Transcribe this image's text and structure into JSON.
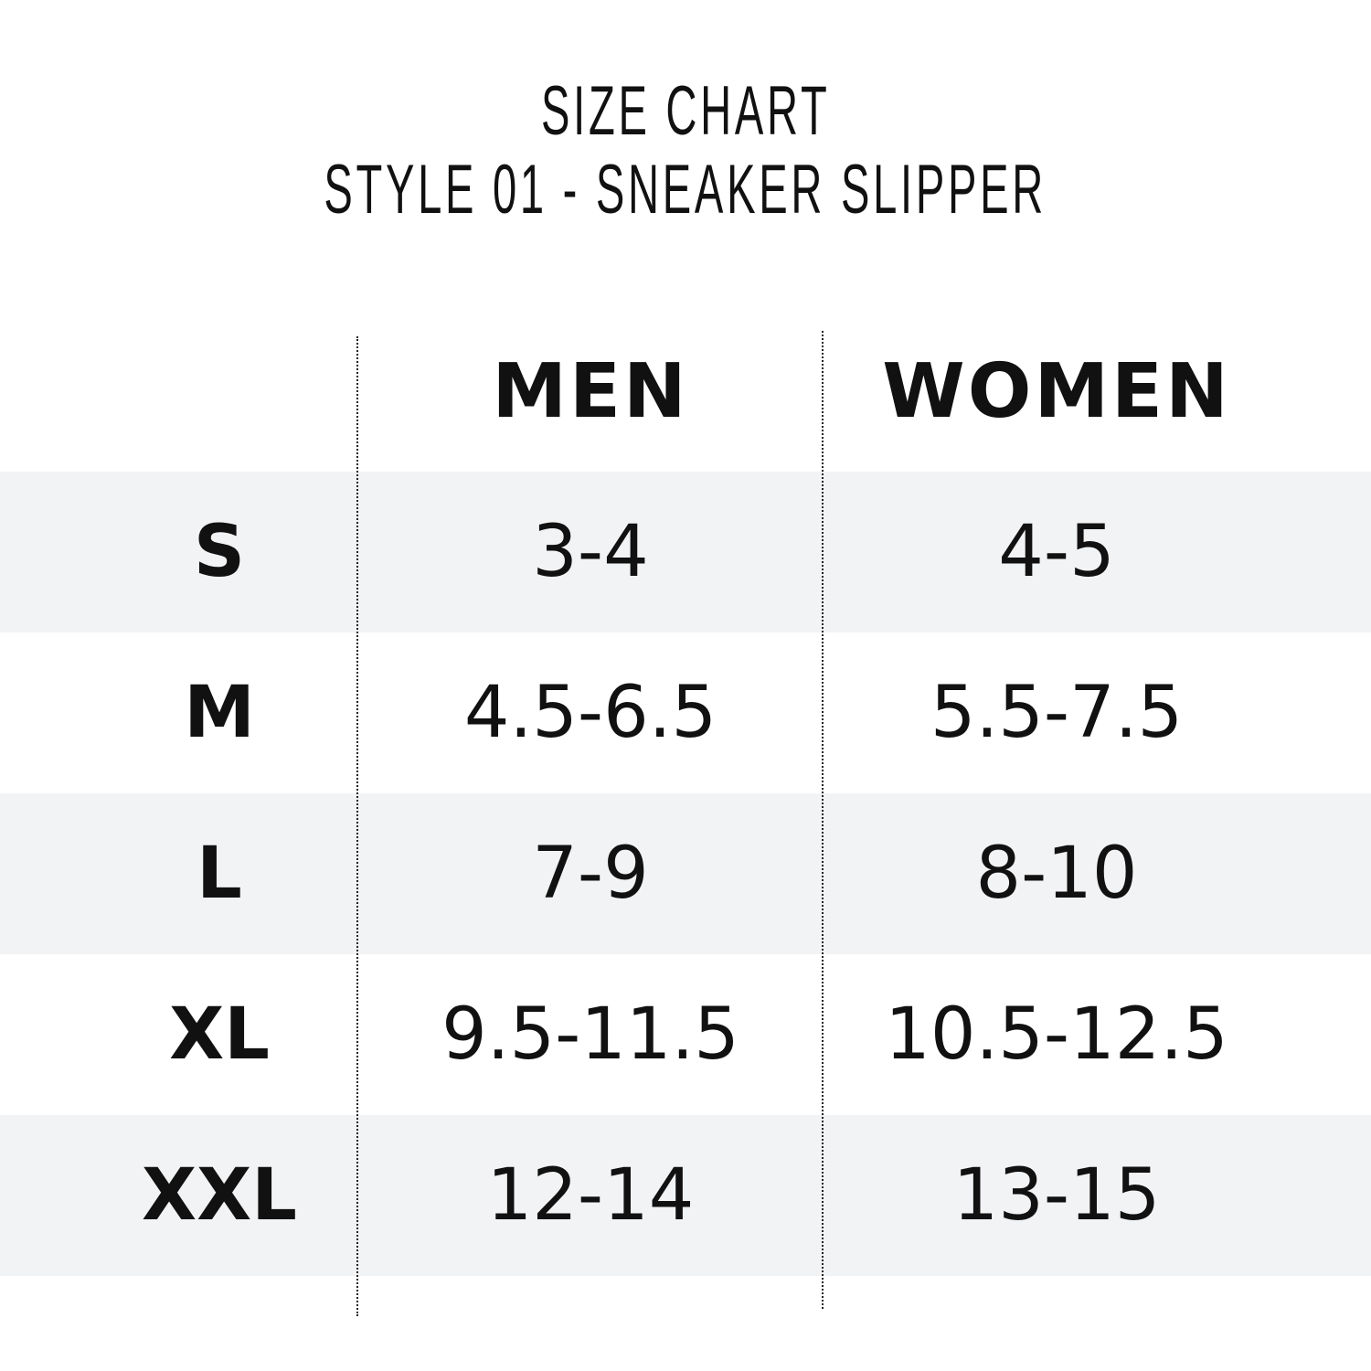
{
  "title": {
    "line1": "SIZE CHART",
    "line2": "STYLE 01 - SNEAKER SLIPPER"
  },
  "table": {
    "headers": [
      "",
      "MEN",
      "WOMEN"
    ],
    "rows": [
      {
        "size": "S",
        "men": "3-4",
        "women": "4-5"
      },
      {
        "size": "M",
        "men": "4.5-6.5",
        "women": "5.5-7.5"
      },
      {
        "size": "L",
        "men": "7-9",
        "women": "8-10"
      },
      {
        "size": "XL",
        "men": "9.5-11.5",
        "women": "10.5-12.5"
      },
      {
        "size": "XXL",
        "men": "12-14",
        "women": "13-15"
      }
    ]
  },
  "colors": {
    "row_shade": "#f2f3f5",
    "text": "#111111"
  }
}
